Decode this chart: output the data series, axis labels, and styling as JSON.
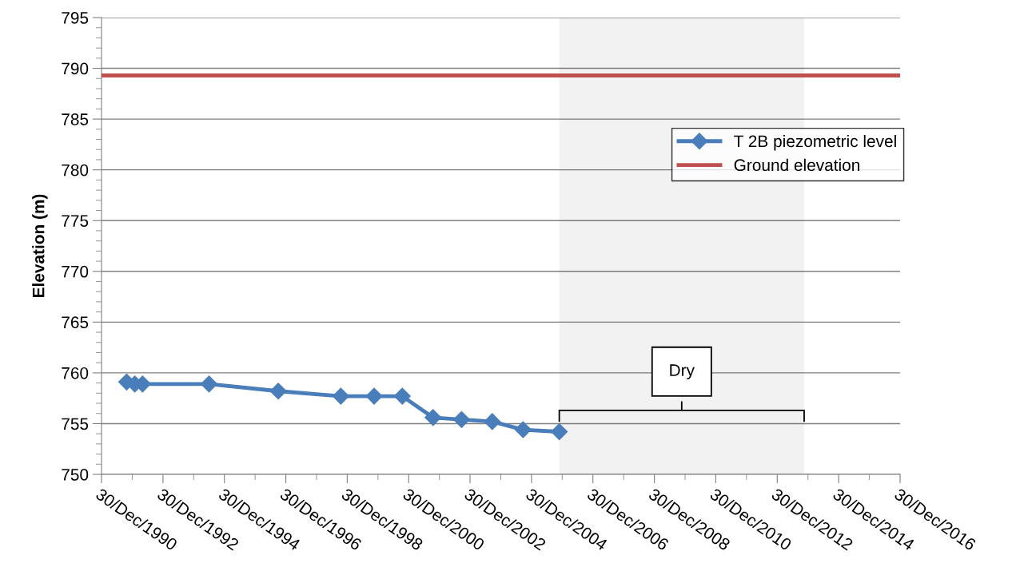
{
  "chart_data": {
    "type": "line",
    "ylabel": "Elevation (m)",
    "series": [
      {
        "name": "T 2B piezometric level",
        "color": "#4a7ebb",
        "x": [
          "1991-10-25",
          "1992-01-30",
          "1992-05-01",
          "1994-07-01",
          "1996-10-01",
          "1998-10-15",
          "1999-11-15",
          "2000-10-15",
          "2001-10-15",
          "2002-09-20",
          "2003-09-20",
          "2004-09-20",
          "2005-11-25"
        ],
        "values": [
          759.1,
          758.9,
          758.9,
          758.9,
          758.2,
          757.7,
          757.7,
          757.7,
          755.6,
          755.4,
          755.2,
          754.4,
          754.2
        ]
      }
    ],
    "ref_lines": [
      {
        "axis": "y",
        "value": 789.3,
        "label": "Ground elevation",
        "color": "#c0504d"
      }
    ],
    "bands": [
      {
        "axis": "x",
        "from": "2005-11-25",
        "to": "2013-11-15",
        "label": "Dry",
        "color": "#000000"
      }
    ],
    "xlim": [
      "1990-12-30",
      "2016-12-30"
    ],
    "xticks": [
      {
        "value": "1990-12-30",
        "label": "30/Dec/1990"
      },
      {
        "value": "1992-12-30",
        "label": "30/Dec/1992"
      },
      {
        "value": "1994-12-30",
        "label": "30/Dec/1994"
      },
      {
        "value": "1996-12-30",
        "label": "30/Dec/1996"
      },
      {
        "value": "1998-12-30",
        "label": "30/Dec/1998"
      },
      {
        "value": "2000-12-30",
        "label": "30/Dec/2000"
      },
      {
        "value": "2002-12-30",
        "label": "30/Dec/2002"
      },
      {
        "value": "2004-12-30",
        "label": "30/Dec/2004"
      },
      {
        "value": "2006-12-30",
        "label": "30/Dec/2006"
      },
      {
        "value": "2008-12-30",
        "label": "30/Dec/2008"
      },
      {
        "value": "2010-12-30",
        "label": "30/Dec/2010"
      },
      {
        "value": "2012-12-30",
        "label": "30/Dec/2012"
      },
      {
        "value": "2014-12-30",
        "label": "30/Dec/2014"
      },
      {
        "value": "2016-12-30",
        "label": "30/Dec/2016"
      }
    ],
    "ylim": [
      750,
      795
    ],
    "yticks": [
      750,
      755,
      760,
      765,
      770,
      775,
      780,
      785,
      790,
      795
    ],
    "grid": "y",
    "legend": "right",
    "marker": "diamond",
    "line_style": "solid"
  }
}
